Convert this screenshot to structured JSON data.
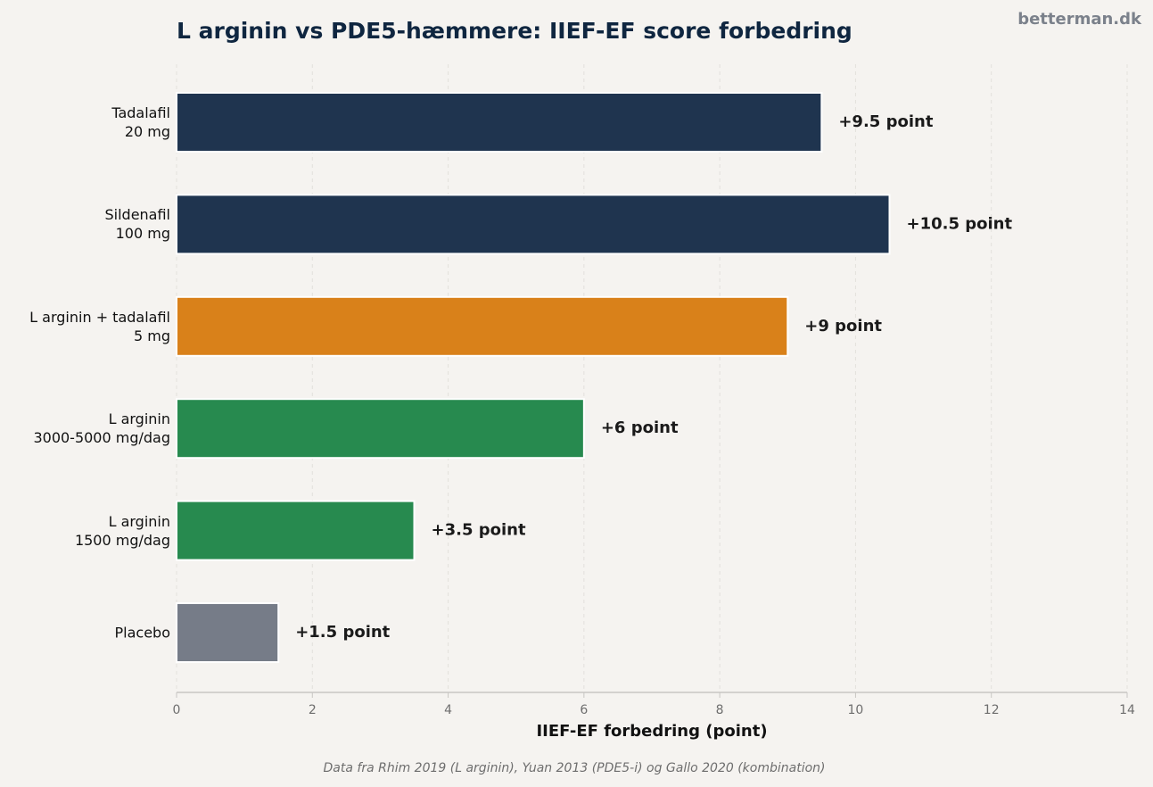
{
  "chart_data": {
    "type": "bar",
    "orientation": "horizontal",
    "title": "L arginin vs PDE5-hæmmere: IIEF-EF score forbedring",
    "watermark": "betterman.dk",
    "xlabel": "IIEF-EF forbedring (point)",
    "source": "Data fra Rhim 2019 (L arginin), Yuan 2013 (PDE5-i) og Gallo 2020 (kombination)",
    "categories": [
      "Tadalafil\n20 mg",
      "Sildenafil\n100 mg",
      "L arginin + tadalafil\n5 mg",
      "L arginin\n3000-5000 mg/dag",
      "L arginin\n1500 mg/dag",
      "Placebo"
    ],
    "values": [
      9.5,
      10.5,
      9,
      6,
      3.5,
      1.5
    ],
    "value_labels": [
      "+9.5 point",
      "+10.5 point",
      "+9 point",
      "+6 point",
      "+3.5 point",
      "+1.5 point"
    ],
    "colors": [
      "#1f344f",
      "#1f344f",
      "#d9811a",
      "#278a4f",
      "#278a4f",
      "#767c88"
    ],
    "xlim": [
      0,
      14
    ],
    "xticks": [
      0,
      2,
      4,
      6,
      8,
      10,
      12,
      14
    ],
    "grid": true
  }
}
